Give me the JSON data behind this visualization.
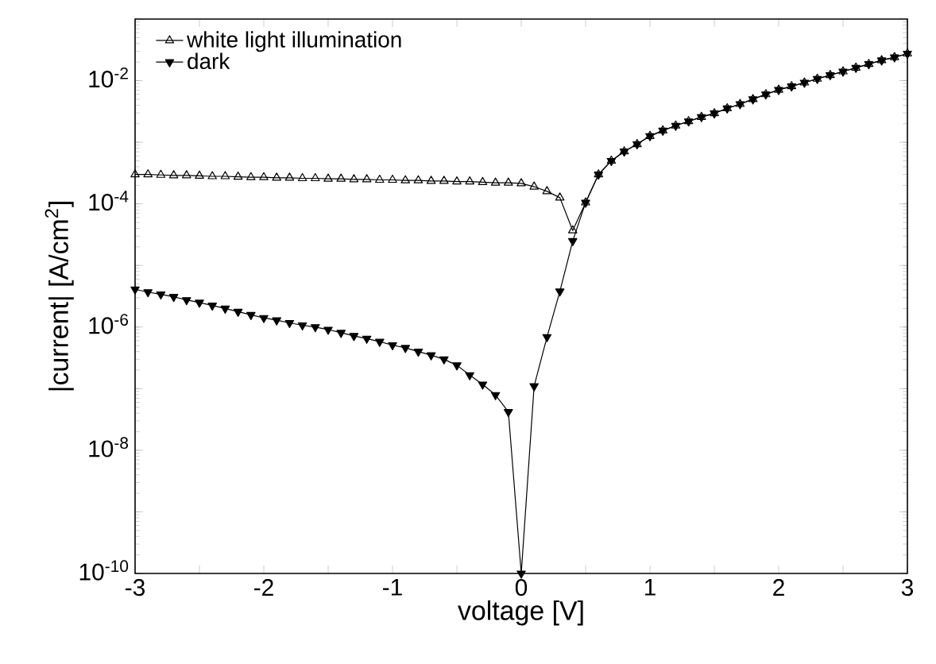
{
  "chart_data": {
    "type": "line",
    "xlabel": "voltage [V]",
    "ylabel": "|current| [A/cm$^{2}$]",
    "x": [
      -3.0,
      -2.9,
      -2.8,
      -2.7,
      -2.6,
      -2.5,
      -2.4,
      -2.3,
      -2.2,
      -2.1,
      -2.0,
      -1.9,
      -1.8,
      -1.7,
      -1.6,
      -1.5,
      -1.4,
      -1.3,
      -1.2,
      -1.1,
      -1.0,
      -0.9,
      -0.8,
      -0.7,
      -0.6,
      -0.5,
      -0.4,
      -0.3,
      -0.2,
      -0.1,
      0.0,
      0.1,
      0.2,
      0.3,
      0.4,
      0.5,
      0.6,
      0.7,
      0.8,
      0.9,
      1.0,
      1.1,
      1.2,
      1.3,
      1.4,
      1.5,
      1.6,
      1.7,
      1.8,
      1.9,
      2.0,
      2.1,
      2.2,
      2.3,
      2.4,
      2.5,
      2.6,
      2.7,
      2.8,
      2.9,
      3.0
    ],
    "series": [
      {
        "name": "white light illumination",
        "color": "#000000",
        "values": [
          0.0003,
          0.0003,
          0.000295,
          0.00029,
          0.00029,
          0.000285,
          0.00028,
          0.00028,
          0.000275,
          0.00027,
          0.00027,
          0.000265,
          0.000265,
          0.00026,
          0.00026,
          0.000255,
          0.000255,
          0.00025,
          0.00025,
          0.000245,
          0.000245,
          0.00024,
          0.00024,
          0.000235,
          0.000235,
          0.00023,
          0.00023,
          0.000225,
          0.00022,
          0.00022,
          0.000215,
          0.00019,
          0.00016,
          0.000126,
          3.7e-05,
          0.000105,
          0.0003,
          0.0005,
          0.00071,
          0.00093,
          0.00126,
          0.00155,
          0.00186,
          0.00219,
          0.00257,
          0.00295,
          0.00355,
          0.00417,
          0.005,
          0.006,
          0.0071,
          0.0081,
          0.0093,
          0.0107,
          0.0123,
          0.0141,
          0.0162,
          0.0186,
          0.0214,
          0.024,
          0.0275
        ]
      },
      {
        "name": "dark",
        "color": "#000000",
        "values": [
          4.1e-06,
          3.7e-06,
          3.4e-06,
          3.1e-06,
          2.75e-06,
          2.5e-06,
          2.24e-06,
          2e-06,
          1.78e-06,
          1.58e-06,
          1.41e-06,
          1.29e-06,
          1.17e-06,
          1.07e-06,
          1e-06,
          9.1e-07,
          8.1e-07,
          7.2e-07,
          6.5e-07,
          5.8e-07,
          5.1e-07,
          4.6e-07,
          4e-07,
          3.5e-07,
          3e-07,
          2.4e-07,
          1.66e-07,
          1.17e-07,
          7.9e-08,
          4.2e-08,
          1e-10,
          1.1e-07,
          6.9e-07,
          3.8e-06,
          2.5e-05,
          0.000105,
          0.0003,
          0.0005,
          0.00071,
          0.00093,
          0.00126,
          0.00155,
          0.00186,
          0.00219,
          0.00257,
          0.00295,
          0.00355,
          0.00417,
          0.005,
          0.006,
          0.0071,
          0.0081,
          0.0093,
          0.0107,
          0.0123,
          0.0141,
          0.0162,
          0.0186,
          0.0214,
          0.024,
          0.0275
        ]
      }
    ],
    "log": "y",
    "xlim": [
      -3,
      3
    ],
    "ylim": [
      1e-10,
      0.1
    ],
    "xticks": [
      -3,
      {
        "value": -2.5,
        "label": null
      },
      -2,
      {
        "value": -1.5,
        "label": null
      },
      -1,
      {
        "value": -0.5,
        "label": null
      },
      0,
      {
        "value": 0.5,
        "label": null
      },
      1,
      {
        "value": 1.5,
        "label": null
      },
      2,
      {
        "value": 2.5,
        "label": null
      },
      3
    ],
    "yticks": [
      {
        "value": 1e-10,
        "label": "10$^{-10}$"
      },
      {
        "value": 1e-09,
        "label": null
      },
      {
        "value": 1e-08,
        "label": "10$^{-8}$"
      },
      {
        "value": 1e-07,
        "label": null
      },
      {
        "value": 1e-06,
        "label": "10$^{-6}$"
      },
      {
        "value": 1e-05,
        "label": null
      },
      {
        "value": 0.0001,
        "label": "10$^{-4}$"
      },
      {
        "value": 0.001,
        "label": null
      },
      {
        "value": 0.01,
        "label": "10$^{-2}$"
      },
      {
        "value": 0.1,
        "label": null
      }
    ],
    "marker": "triangle",
    "line_style": "solid",
    "legend": "top left",
    "grid": false
  }
}
